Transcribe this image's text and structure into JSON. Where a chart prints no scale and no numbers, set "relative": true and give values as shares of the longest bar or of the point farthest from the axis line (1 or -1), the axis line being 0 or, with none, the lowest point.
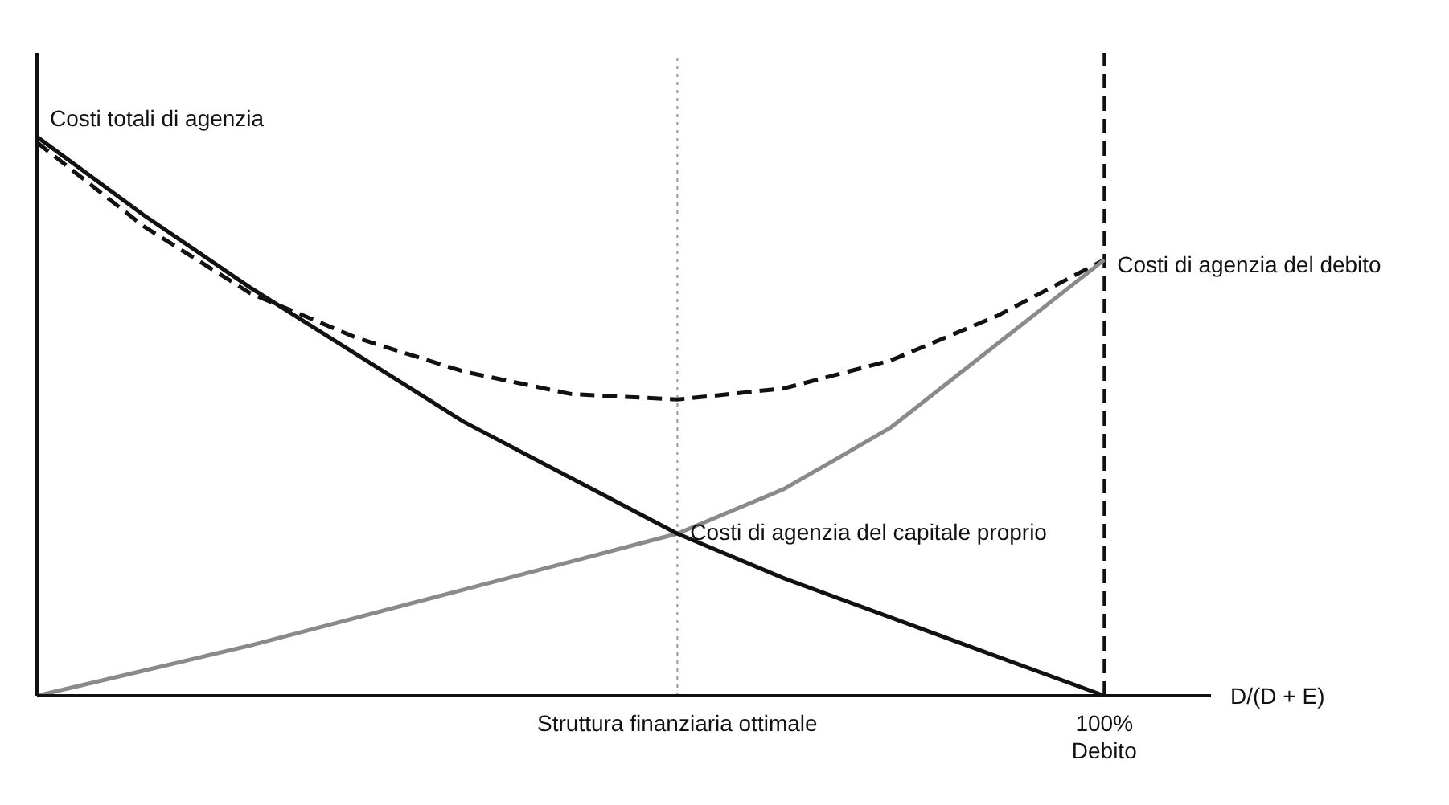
{
  "chart_data": {
    "type": "line",
    "relative": true,
    "xlabel": "D/(D + E)",
    "categories": [
      null,
      null,
      null,
      null,
      null,
      null,
      "Struttura finanziaria ottimale",
      null,
      null,
      null,
      "100% Debito"
    ],
    "series": [
      {
        "name": "Costi totali di agenzia",
        "color": "#111111",
        "line_style": "dashed",
        "values": [
          0.99,
          0.84,
          0.72,
          0.64,
          0.58,
          0.54,
          0.53,
          0.55,
          0.6,
          0.68,
          0.78
        ]
      },
      {
        "name": "Costi di agenzia del debito",
        "color": "#8a8a8a",
        "line_style": "solid",
        "values": [
          0,
          0.045,
          0.09,
          0.14,
          0.19,
          0.24,
          0.29,
          0.37,
          0.48,
          0.63,
          0.78
        ]
      },
      {
        "name": "Costi di agenzia del capitale proprio",
        "color": "#111111",
        "line_style": "solid",
        "values": [
          1,
          0.86,
          0.73,
          0.61,
          0.49,
          0.39,
          0.29,
          0.21,
          0.14,
          0.07,
          0
        ]
      }
    ],
    "ref_lines": [
      {
        "axis": "x",
        "value": "Struttura finanziaria ottimale",
        "line_style": "dotted",
        "color": "#999999"
      },
      {
        "axis": "x",
        "value": "100% Debito",
        "line_style": "dashed",
        "color": "#111111"
      }
    ]
  }
}
